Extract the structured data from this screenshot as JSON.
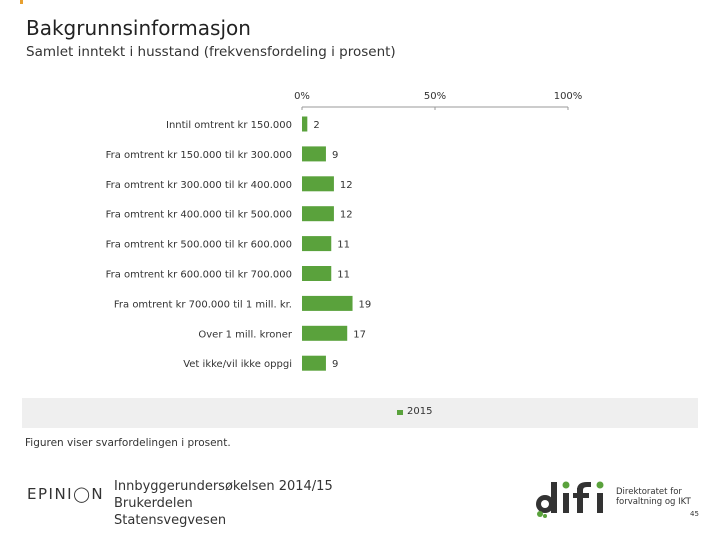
{
  "header": {
    "title": "Bakgrunnsinformasjon",
    "subtitle": "Samlet inntekt i husstand (frekvensfordeling i prosent)"
  },
  "chart_data": {
    "type": "bar",
    "orientation": "horizontal",
    "categories": [
      "Inntil omtrent kr 150.000",
      "Fra omtrent kr 150.000 til kr 300.000",
      "Fra omtrent kr 300.000 til kr 400.000",
      "Fra omtrent kr 400.000 til kr 500.000",
      "Fra omtrent kr 500.000 til kr 600.000",
      "Fra omtrent kr 600.000 til kr 700.000",
      "Fra omtrent kr 700.000 til 1 mill. kr.",
      "Over 1 mill. kroner",
      "Vet ikke/vil ikke oppgi"
    ],
    "series": [
      {
        "name": "2015",
        "values": [
          2,
          9,
          12,
          12,
          11,
          11,
          19,
          17,
          9
        ],
        "color": "#5aa23c"
      }
    ],
    "xlim": [
      0,
      100
    ],
    "ticks": [
      0,
      50,
      100
    ],
    "tick_labels": [
      "0%",
      "50%",
      "100%"
    ],
    "legend_position": "bottom",
    "grid": false
  },
  "caption": "Figuren viser svarfordelingen i prosent.",
  "footer": {
    "brand": "EPINI◯N",
    "survey_lines": [
      "Innbyggerundersøkelsen 2014/15",
      "Brukerdelen",
      "Statensvegvesen"
    ],
    "logo_text": "Direktoratet for forvaltning og IKT",
    "page_number": "45"
  }
}
